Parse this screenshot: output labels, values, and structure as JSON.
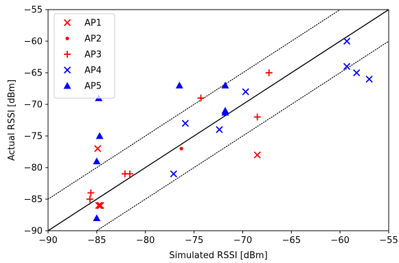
{
  "chart_data": {
    "type": "scatter",
    "title": "",
    "xlabel": "Simulated RSSI [dBm]",
    "ylabel": "Actual RSSI [dBm]",
    "xlim": [
      -90,
      -55
    ],
    "ylim": [
      -90,
      -55
    ],
    "xticks": [
      -90,
      -85,
      -80,
      -75,
      -70,
      -65,
      -60,
      -55
    ],
    "yticks": [
      -90,
      -85,
      -80,
      -75,
      -70,
      -65,
      -60,
      -55
    ],
    "xtick_labels": [
      "−90",
      "−85",
      "−80",
      "−75",
      "−70",
      "−65",
      "−60",
      "−55"
    ],
    "ytick_labels": [
      "−90",
      "−85",
      "−80",
      "−75",
      "−70",
      "−65",
      "−60",
      "−55"
    ],
    "grid": false,
    "legend_position": "top-left",
    "reference_lines": [
      {
        "style": "solid",
        "color": "#000000",
        "offset": 0
      },
      {
        "style": "dotted",
        "color": "#000000",
        "offset": 5
      },
      {
        "style": "dotted",
        "color": "#000000",
        "offset": -5
      }
    ],
    "series": [
      {
        "name": "AP1",
        "marker": "x",
        "color": "#ff0000",
        "points": [
          [
            -84.9,
            -77
          ],
          [
            -84.8,
            -86
          ],
          [
            -84.7,
            -86
          ],
          [
            -84.6,
            -86
          ],
          [
            -68.5,
            -78
          ]
        ]
      },
      {
        "name": "AP2",
        "marker": "dot",
        "color": "#ff0000",
        "points": [
          [
            -76.3,
            -77
          ]
        ]
      },
      {
        "name": "AP3",
        "marker": "plus",
        "color": "#ff0000",
        "points": [
          [
            -85.6,
            -84
          ],
          [
            -85.7,
            -85
          ],
          [
            -82.1,
            -81
          ],
          [
            -81.6,
            -81
          ],
          [
            -74.3,
            -69
          ],
          [
            -68.5,
            -72
          ],
          [
            -67.3,
            -65
          ]
        ]
      },
      {
        "name": "AP4",
        "marker": "x",
        "color": "#0000ff",
        "points": [
          [
            -77.1,
            -81
          ],
          [
            -75.9,
            -73
          ],
          [
            -72.4,
            -74
          ],
          [
            -69.7,
            -68
          ],
          [
            -59.3,
            -60
          ],
          [
            -59.3,
            -64
          ],
          [
            -58.3,
            -65
          ],
          [
            -57.0,
            -66
          ]
        ]
      },
      {
        "name": "AP5",
        "marker": "triangle",
        "color": "#0000ff",
        "points": [
          [
            -84.8,
            -69
          ],
          [
            -84.7,
            -75
          ],
          [
            -85.0,
            -79
          ],
          [
            -85.0,
            -88
          ],
          [
            -76.5,
            -67
          ],
          [
            -71.8,
            -67
          ],
          [
            -71.8,
            -71
          ],
          [
            -71.8,
            -71.3
          ]
        ]
      }
    ]
  }
}
